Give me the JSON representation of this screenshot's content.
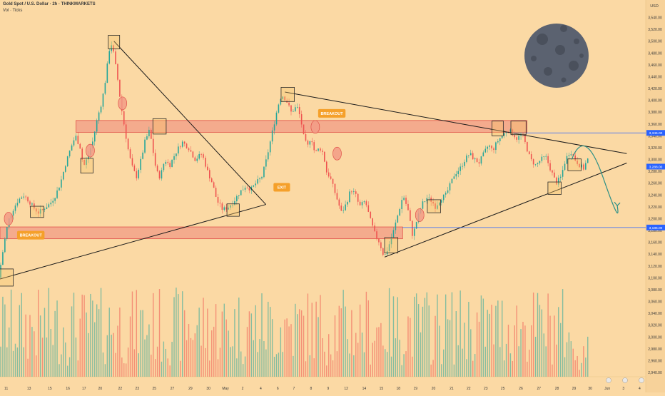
{
  "header": {
    "title": "Gold Spot / U.S. Dollar · 2h · THINKMARKETS",
    "subtitle": "Vol · Ticks",
    "currency": "USD"
  },
  "colors": {
    "background": "#fbd9a4",
    "up_candle": "#26a69a",
    "down_candle": "#ef5350",
    "zone_fill": "#f29b86",
    "zone_stroke": "#e0524a",
    "line": "#1a1a1a",
    "level_line": "#2962ff",
    "label_bg": "#f5a02a",
    "arrow": "#2a8f86",
    "moon": "#5b6270"
  },
  "chart_data": {
    "type": "candlestick",
    "title": "Gold Spot / U.S. Dollar · 2h · THINKMARKETS",
    "y_axis": {
      "min": 2940,
      "max": 3560,
      "ticks": [
        3540,
        3520,
        3500,
        3480,
        3460,
        3440,
        3420,
        3400,
        3380,
        3360,
        3340,
        3320,
        3300,
        3280,
        3260,
        3240,
        3220,
        3200,
        3180,
        3160,
        3140,
        3120,
        3100,
        3080,
        3060,
        3040,
        3020,
        3000,
        2980,
        2960,
        2940
      ]
    },
    "x_axis": {
      "ticks": [
        "11",
        "13",
        "15",
        "16",
        "17",
        "20",
        "22",
        "23",
        "25",
        "27",
        "29",
        "30",
        "May",
        "2",
        "4",
        "6",
        "7",
        "8",
        "9",
        "12",
        "14",
        "15",
        "18",
        "19",
        "20",
        "21",
        "22",
        "23",
        "25",
        "26",
        "27",
        "28",
        "29",
        "30",
        "Jun",
        "3",
        "4"
      ],
      "tick_pos": [
        0.2,
        2.6,
        4.8,
        6.7,
        8.4,
        10.1,
        12.2,
        14.0,
        15.8,
        17.7,
        19.6,
        21.5,
        23.3,
        25.1,
        27.0,
        28.8,
        30.5,
        32.3,
        34.1,
        36.0,
        37.9,
        39.7,
        41.5,
        43.3,
        45.2,
        47.1,
        48.9,
        50.7,
        52.5,
        54.4,
        56.3,
        58.2,
        60.0,
        61.7,
        63.5,
        65.2,
        66.9
      ]
    },
    "price_path": [
      [
        0,
        3100
      ],
      [
        0.3,
        3130
      ],
      [
        0.6,
        3160
      ],
      [
        1.0,
        3195
      ],
      [
        1.5,
        3215
      ],
      [
        2.0,
        3230
      ],
      [
        2.6,
        3240
      ],
      [
        3.2,
        3230
      ],
      [
        3.6,
        3220
      ],
      [
        4.2,
        3210
      ],
      [
        4.8,
        3218
      ],
      [
        5.4,
        3225
      ],
      [
        6.0,
        3240
      ],
      [
        6.5,
        3260
      ],
      [
        7.0,
        3290
      ],
      [
        7.6,
        3320
      ],
      [
        8.1,
        3340
      ],
      [
        8.6,
        3320
      ],
      [
        8.8,
        3300
      ],
      [
        9.0,
        3290
      ],
      [
        9.4,
        3305
      ],
      [
        9.9,
        3330
      ],
      [
        10.4,
        3370
      ],
      [
        10.9,
        3400
      ],
      [
        11.3,
        3440
      ],
      [
        11.6,
        3480
      ],
      [
        11.8,
        3500
      ],
      [
        12.1,
        3480
      ],
      [
        12.5,
        3440
      ],
      [
        12.9,
        3390
      ],
      [
        13.3,
        3350
      ],
      [
        13.6,
        3320
      ],
      [
        14.0,
        3290
      ],
      [
        14.5,
        3270
      ],
      [
        15.0,
        3300
      ],
      [
        15.4,
        3330
      ],
      [
        15.9,
        3350
      ],
      [
        16.3,
        3310
      ],
      [
        16.6,
        3280
      ],
      [
        17.0,
        3270
      ],
      [
        17.5,
        3300
      ],
      [
        18.0,
        3290
      ],
      [
        18.6,
        3310
      ],
      [
        19.3,
        3330
      ],
      [
        20.0,
        3320
      ],
      [
        20.7,
        3300
      ],
      [
        21.4,
        3310
      ],
      [
        22.0,
        3280
      ],
      [
        22.5,
        3260
      ],
      [
        23.0,
        3230
      ],
      [
        23.6,
        3215
      ],
      [
        24.2,
        3220
      ],
      [
        24.8,
        3230
      ],
      [
        25.4,
        3245
      ],
      [
        26.0,
        3255
      ],
      [
        26.6,
        3250
      ],
      [
        27.1,
        3260
      ],
      [
        27.7,
        3270
      ],
      [
        28.2,
        3300
      ],
      [
        28.6,
        3330
      ],
      [
        29.0,
        3360
      ],
      [
        29.4,
        3390
      ],
      [
        29.8,
        3410
      ],
      [
        30.3,
        3400
      ],
      [
        30.8,
        3380
      ],
      [
        31.4,
        3390
      ],
      [
        31.8,
        3370
      ],
      [
        32.1,
        3340
      ],
      [
        32.5,
        3320
      ],
      [
        32.9,
        3340
      ],
      [
        33.3,
        3310
      ],
      [
        33.8,
        3320
      ],
      [
        34.2,
        3310
      ],
      [
        34.5,
        3280
      ],
      [
        34.9,
        3270
      ],
      [
        35.3,
        3250
      ],
      [
        35.7,
        3230
      ],
      [
        36.1,
        3210
      ],
      [
        36.6,
        3225
      ],
      [
        37.1,
        3250
      ],
      [
        37.6,
        3240
      ],
      [
        38.0,
        3220
      ],
      [
        38.6,
        3230
      ],
      [
        39.1,
        3200
      ],
      [
        39.6,
        3175
      ],
      [
        40.1,
        3160
      ],
      [
        40.6,
        3135
      ],
      [
        41.0,
        3150
      ],
      [
        41.6,
        3180
      ],
      [
        42.1,
        3210
      ],
      [
        42.6,
        3240
      ],
      [
        43.1,
        3215
      ],
      [
        43.6,
        3170
      ],
      [
        44.0,
        3195
      ],
      [
        44.6,
        3225
      ],
      [
        45.1,
        3235
      ],
      [
        45.6,
        3230
      ],
      [
        46.0,
        3220
      ],
      [
        46.6,
        3235
      ],
      [
        47.1,
        3240
      ],
      [
        47.5,
        3255
      ],
      [
        48.0,
        3275
      ],
      [
        48.6,
        3285
      ],
      [
        49.1,
        3300
      ],
      [
        49.6,
        3310
      ],
      [
        50.1,
        3300
      ],
      [
        50.6,
        3295
      ],
      [
        51.1,
        3310
      ],
      [
        51.6,
        3325
      ],
      [
        52.0,
        3315
      ],
      [
        52.5,
        3330
      ],
      [
        53.0,
        3340
      ],
      [
        53.6,
        3350
      ],
      [
        54.1,
        3345
      ],
      [
        54.6,
        3335
      ],
      [
        55.1,
        3345
      ],
      [
        55.6,
        3320
      ],
      [
        56.0,
        3300
      ],
      [
        56.6,
        3290
      ],
      [
        57.1,
        3300
      ],
      [
        57.6,
        3305
      ],
      [
        58.2,
        3280
      ],
      [
        58.7,
        3260
      ],
      [
        59.2,
        3270
      ],
      [
        59.7,
        3300
      ],
      [
        60.2,
        3315
      ],
      [
        60.7,
        3300
      ],
      [
        61.2,
        3290
      ],
      [
        61.6,
        3285
      ],
      [
        62.0,
        3300
      ]
    ],
    "volume_range": [
      0.12,
      0.98
    ],
    "zones": [
      {
        "label": "resistance",
        "y_top": 3366,
        "y_bottom": 3346,
        "x_start": 8.0,
        "x_end": 55.5
      },
      {
        "label": "support",
        "y_top": 3186,
        "y_bottom": 3166,
        "x_start": 0,
        "x_end": 42.4
      }
    ],
    "trendlines": [
      {
        "from": [
          0,
          3098
        ],
        "to": [
          28.0,
          3224
        ]
      },
      {
        "from": [
          12.0,
          3500
        ],
        "to": [
          28.0,
          3224
        ]
      },
      {
        "from": [
          30.0,
          3414
        ],
        "to": [
          66.0,
          3310
        ]
      },
      {
        "from": [
          40.5,
          3135
        ],
        "to": [
          66.0,
          3294
        ]
      }
    ],
    "price_levels": [
      {
        "label": "3,345.00",
        "value": 3345,
        "color": "#2962ff"
      },
      {
        "label": "3,185.00",
        "value": 3185,
        "color": "#2962ff"
      },
      {
        "label": "3,288.00",
        "value": 3288,
        "color": "#2962ff"
      }
    ],
    "annotations": [
      {
        "text": "BREAKOUT",
        "x": 1.8,
        "y": 3172
      },
      {
        "text": "BREAKOUT",
        "x": 33.5,
        "y": 3378
      },
      {
        "text": "EXIT",
        "x": 28.8,
        "y": 3253
      }
    ],
    "highlight_boxes": [
      [
        -0.2,
        3115,
        1.4,
        3086
      ],
      [
        3.2,
        3221,
        4.6,
        3202
      ],
      [
        8.5,
        3302,
        9.8,
        3277
      ],
      [
        11.4,
        3510,
        12.6,
        3487
      ],
      [
        16.1,
        3369,
        17.5,
        3343
      ],
      [
        23.9,
        3225,
        25.2,
        3204
      ],
      [
        29.6,
        3422,
        31.0,
        3398
      ],
      [
        40.5,
        3168,
        41.9,
        3142
      ],
      [
        45.0,
        3232,
        46.4,
        3210
      ],
      [
        51.8,
        3365,
        53.0,
        3340
      ],
      [
        53.8,
        3365,
        55.4,
        3342
      ],
      [
        57.7,
        3262,
        59.1,
        3241
      ],
      [
        59.8,
        3301,
        61.2,
        3281
      ]
    ],
    "circle_markers": [
      [
        0.9,
        3200
      ],
      [
        9.5,
        3315
      ],
      [
        12.9,
        3395
      ],
      [
        33.2,
        3355
      ],
      [
        35.5,
        3310
      ],
      [
        44.2,
        3206
      ]
    ],
    "forecast": [
      [
        60.2,
        3300
      ],
      [
        61.6,
        3318
      ],
      [
        63.5,
        3270
      ],
      [
        65.0,
        3222
      ]
    ]
  }
}
